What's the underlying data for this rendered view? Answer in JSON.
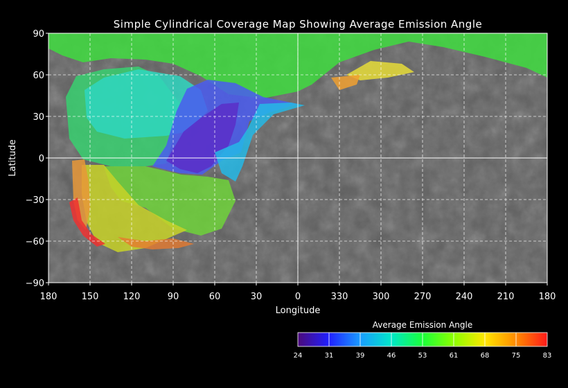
{
  "title": "Simple Cylindrical Coverage Map Showing Average Emission Angle",
  "map": {
    "x_label": "Longitude",
    "y_label": "Latitude",
    "x_ticks": [
      "180",
      "150",
      "120",
      "90",
      "60",
      "30",
      "0",
      "330",
      "300",
      "270",
      "240",
      "210",
      "180"
    ],
    "y_ticks": [
      "90",
      "60",
      "30",
      "0",
      "−30",
      "−60",
      "−90"
    ],
    "grid": true,
    "grid_style": "dashed",
    "base_surface": "grayscale cratered mosaic"
  },
  "colorbar": {
    "title": "Average Emission Angle",
    "ticks": [
      "24",
      "31",
      "39",
      "46",
      "53",
      "61",
      "68",
      "75",
      "83"
    ],
    "colors": [
      "#4b0a7a",
      "#2020ff",
      "#1a9cff",
      "#00e6c8",
      "#1aff3a",
      "#8cff00",
      "#ffe600",
      "#ff8a00",
      "#ff1a1a"
    ]
  },
  "coverage_regions": [
    {
      "name": "north-polar-band",
      "emission": 60,
      "color": "#3fdc3f"
    },
    {
      "name": "north-west-cyan",
      "emission": 47,
      "color": "#2fd6c0"
    },
    {
      "name": "west-green-patch",
      "emission": 55,
      "color": "#38d070"
    },
    {
      "name": "central-blue",
      "emission": 36,
      "color": "#4a5cf0"
    },
    {
      "name": "central-indigo",
      "emission": 30,
      "color": "#5a2ec8"
    },
    {
      "name": "east-cyan-edge",
      "emission": 45,
      "color": "#25b8e6"
    },
    {
      "name": "south-green",
      "emission": 58,
      "color": "#6ed23a"
    },
    {
      "name": "south-yellow",
      "emission": 66,
      "color": "#c8d228"
    },
    {
      "name": "west-orange-strip",
      "emission": 73,
      "color": "#e89838"
    },
    {
      "name": "south-red-edge",
      "emission": 80,
      "color": "#ee3030"
    },
    {
      "name": "north-east-orange",
      "emission": 72,
      "color": "#f0a030"
    },
    {
      "name": "north-east-yellow",
      "emission": 67,
      "color": "#e6dc38"
    }
  ]
}
